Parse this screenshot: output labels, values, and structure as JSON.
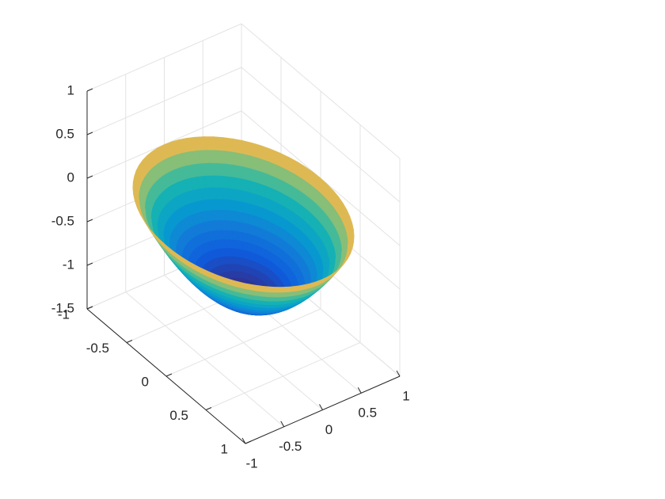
{
  "chart_data": {
    "type": "surface",
    "title": "",
    "xlabel": "",
    "ylabel": "",
    "zlabel": "",
    "grid": true,
    "colormap": "parula",
    "colors": {
      "background": "#ffffff",
      "axis": "#262626",
      "grid": "#e3e3e3",
      "surface_low": "#3b2fb8",
      "surface_mid": "#1fa3d6",
      "surface_high": "#f4d81f"
    },
    "x_axis": {
      "range": [
        -1,
        1
      ],
      "ticks": [
        -1,
        -0.5,
        0,
        0.5,
        1
      ],
      "tick_labels": [
        "-1",
        "-0.5",
        "0",
        "0.5",
        "1"
      ]
    },
    "y_axis": {
      "range": [
        -1,
        1
      ],
      "ticks": [
        -1,
        -0.5,
        0,
        0.5,
        1
      ],
      "tick_labels": [
        "-1",
        "-0.5",
        "0",
        "0.5",
        "1"
      ]
    },
    "z_axis": {
      "range": [
        -1.5,
        1
      ],
      "ticks": [
        1,
        0.5,
        0,
        -0.5,
        -1,
        -1.5
      ],
      "tick_labels": [
        "1",
        "0.5",
        "0",
        "-0.5",
        "-1",
        "-1.5"
      ]
    },
    "surface": {
      "function": "z = x^2 + y^2 - 1",
      "domain": "unit disk",
      "z_min": -1,
      "z_max": 0
    }
  }
}
